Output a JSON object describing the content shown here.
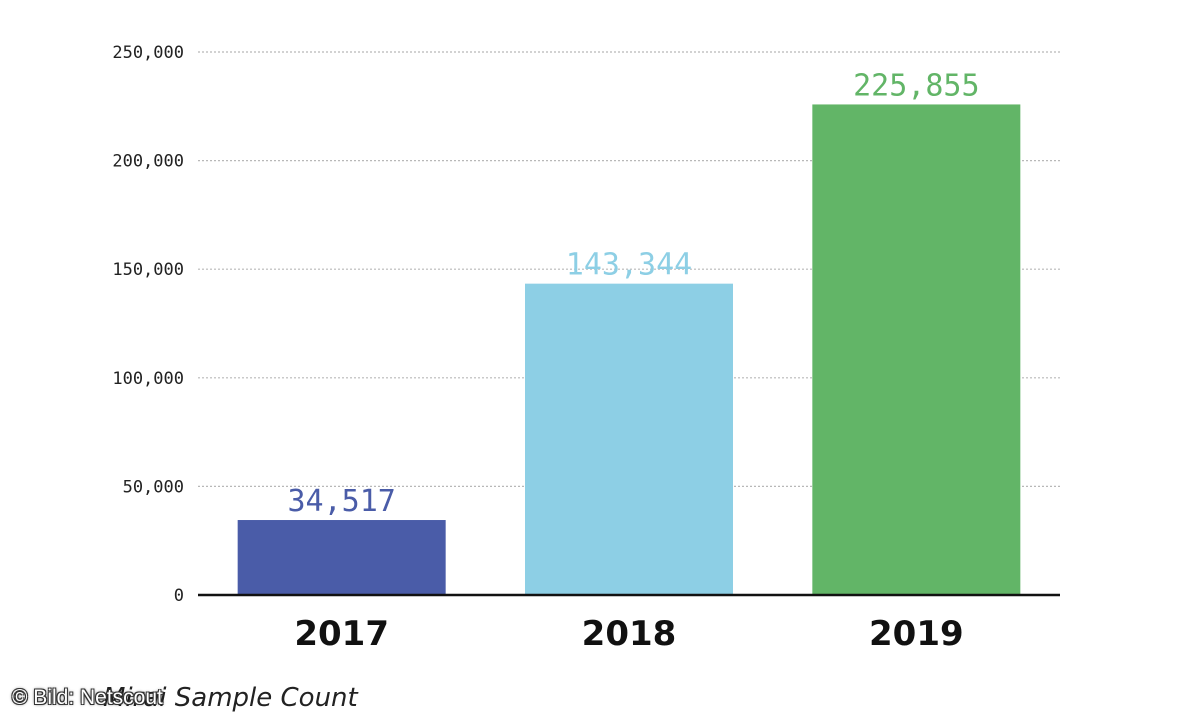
{
  "chart_data": {
    "type": "bar",
    "categories": [
      "2017",
      "2018",
      "2019"
    ],
    "values": [
      34517,
      143344,
      225855
    ],
    "value_labels": [
      "34,517",
      "143,344",
      "225,855"
    ],
    "colors": [
      "#4a5ca8",
      "#8dcfe5",
      "#62b567"
    ],
    "ylim": [
      0,
      250000
    ],
    "y_ticks": [
      0,
      50000,
      100000,
      150000,
      200000,
      250000
    ],
    "y_tick_labels": [
      "0",
      "50,000",
      "100,000",
      "150,000",
      "200,000",
      "250,000"
    ],
    "grid": true,
    "title": "",
    "xlabel": "",
    "ylabel": ""
  },
  "caption": "Mirai Sample Count",
  "credit": "© Bild: Netscout"
}
